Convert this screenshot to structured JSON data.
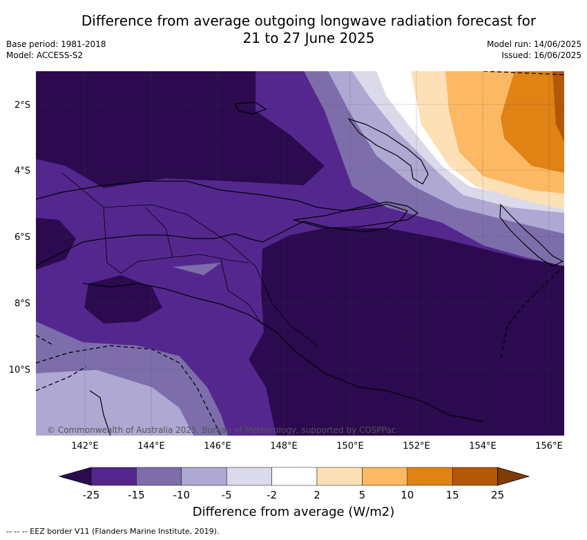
{
  "title": {
    "line1": "Difference from average outgoing longwave radiation forecast for",
    "line2": "21 to 27 June 2025"
  },
  "meta": {
    "base_period": "Base period: 1981-2018",
    "model": "Model: ACCESS-S2",
    "model_run": "Model run: 14/06/2025",
    "issued": "Issued: 16/06/2025"
  },
  "map": {
    "lat_labels": [
      "2°S",
      "4°S",
      "6°S",
      "8°S",
      "10°S"
    ],
    "lon_labels": [
      "142°E",
      "144°E",
      "146°E",
      "148°E",
      "150°E",
      "152°E",
      "154°E",
      "156°E"
    ],
    "copyright": "© Commonwealth of Australia 2025, Bureau of Meteorology, supported by COSPPac"
  },
  "colorbar": {
    "ticks": [
      "-25",
      "-15",
      "-10",
      "-5",
      "-2",
      "2",
      "5",
      "10",
      "15",
      "25"
    ],
    "colors": [
      "#2b0a4f",
      "#54278f",
      "#7d6eab",
      "#afa8d3",
      "#dadaeb",
      "#ffffff",
      "#fee0b6",
      "#fdb863",
      "#e08214",
      "#b35806",
      "#7f3b08"
    ],
    "label": "Difference from average (W/m2)"
  },
  "footer": "--  --  -- EEZ border V11 (Flanders Marine Institute, 2019)."
}
